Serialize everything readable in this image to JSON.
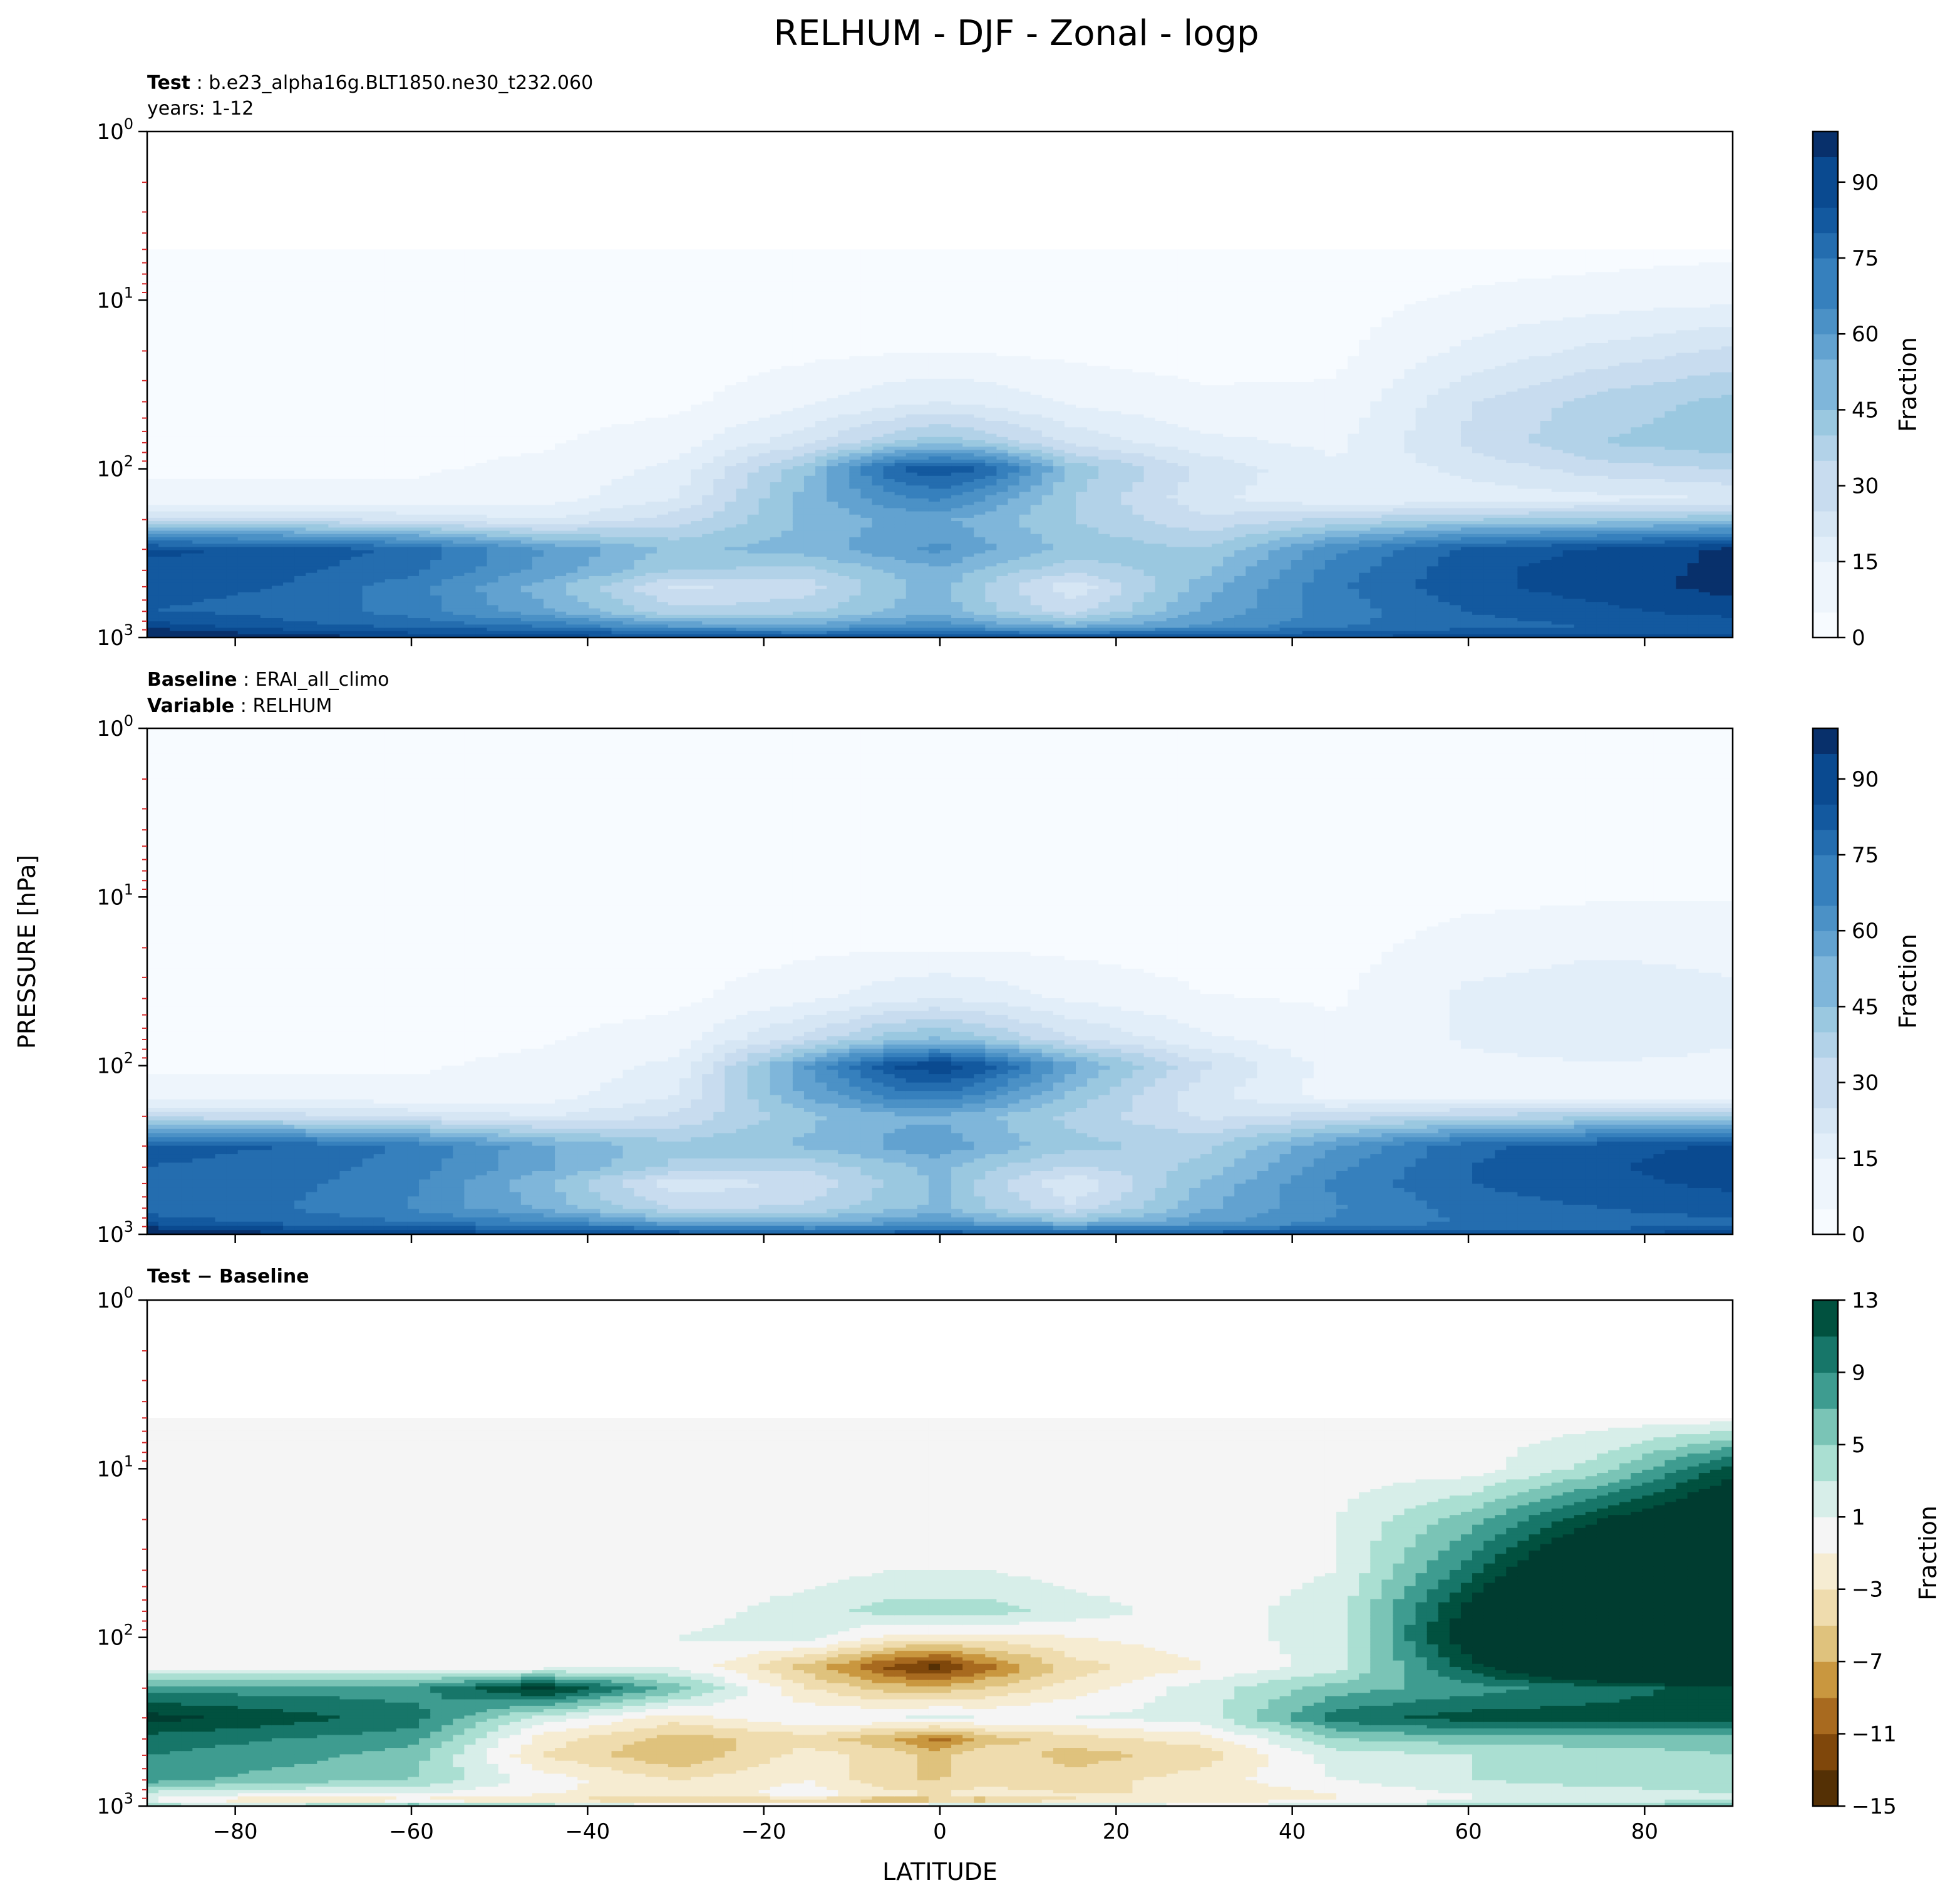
{
  "title": "RELHUM - DJF - Zonal - logp",
  "shared_xlabel": "LATITUDE",
  "shared_ylabel": "PRESSURE [hPa]",
  "panels": [
    {
      "header": [
        {
          "bold": "Test",
          "sep": " : ",
          "text": "b.e23_alpha16g.BLT1850.ne30_t232.060"
        },
        {
          "bold": "",
          "sep": "",
          "text": "years: 1-12"
        }
      ],
      "colorbar_label": "Fraction",
      "colorbar_ticks": [
        "0",
        "15",
        "30",
        "45",
        "60",
        "75",
        "90"
      ]
    },
    {
      "header": [
        {
          "bold": "Baseline",
          "sep": " : ",
          "text": "ERAI_all_climo"
        },
        {
          "bold": "Variable",
          "sep": " : ",
          "text": "RELHUM"
        }
      ],
      "colorbar_label": "Fraction",
      "colorbar_ticks": [
        "0",
        "15",
        "30",
        "45",
        "60",
        "75",
        "90"
      ]
    },
    {
      "header": [
        {
          "bold": "Test − Baseline",
          "sep": "",
          "text": ""
        }
      ],
      "colorbar_label": "Fraction",
      "colorbar_ticks": [
        "13",
        "9",
        "5",
        "1",
        "−3",
        "−7",
        "−11",
        "−15"
      ]
    }
  ],
  "colors": {
    "blues": [
      "#f7fbff",
      "#eef5fc",
      "#e2eef9",
      "#d6e6f4",
      "#c8dcef",
      "#b2d2e8",
      "#9ac8e0",
      "#7fb6da",
      "#62a2d0",
      "#4b91c6",
      "#3680bd",
      "#246daf",
      "#13599f",
      "#0a4a90",
      "#08306b"
    ],
    "brbg": [
      "#543005",
      "#7f470b",
      "#a86a1f",
      "#c9973f",
      "#dfc27d",
      "#efdcae",
      "#f6ecd2",
      "#f5f5f5",
      "#d7eee9",
      "#aadfd2",
      "#7ac4b6",
      "#3e9c90",
      "#177669",
      "#01513f",
      "#003c30"
    ],
    "stratosphere_fill": "#f3f4f2",
    "pressure_tick_marks": "#d62728"
  },
  "chart_data": [
    {
      "type": "heatmap",
      "panel": "Test",
      "x_axis": {
        "label": "LATITUDE",
        "range": [
          -90,
          90
        ],
        "ticks": [
          -80,
          -60,
          -40,
          -20,
          0,
          20,
          40,
          60,
          80
        ]
      },
      "y_axis": {
        "scale": "log",
        "inverted": true,
        "range": [
          1,
          1000
        ],
        "tick_labels": [
          "10^0",
          "10^1",
          "10^2",
          "10^3"
        ]
      },
      "colorbar": {
        "label": "Fraction",
        "range": [
          0,
          100
        ],
        "ticks": [
          0,
          15,
          30,
          45,
          60,
          75,
          90
        ]
      },
      "data_top_hPa": 5,
      "value_grid": {
        "latitudes": [
          -90,
          -75,
          -60,
          -45,
          -30,
          -15,
          -5,
          0,
          5,
          15,
          30,
          45,
          60,
          75,
          90
        ],
        "pressures_hPa": [
          5,
          10,
          20,
          40,
          70,
          100,
          150,
          200,
          300,
          400,
          500,
          700,
          850,
          925,
          1000
        ],
        "values": [
          [
            2,
            2,
            2,
            2,
            2,
            2,
            2,
            2,
            2,
            2,
            2,
            2,
            3,
            4,
            5
          ],
          [
            3,
            3,
            3,
            3,
            3,
            3,
            3,
            3,
            3,
            3,
            3,
            4,
            8,
            10,
            12
          ],
          [
            3,
            3,
            3,
            3,
            3,
            5,
            6,
            6,
            6,
            5,
            4,
            5,
            15,
            22,
            28
          ],
          [
            4,
            4,
            4,
            4,
            5,
            12,
            18,
            20,
            18,
            12,
            8,
            8,
            26,
            36,
            42
          ],
          [
            5,
            5,
            5,
            6,
            10,
            25,
            40,
            45,
            40,
            25,
            15,
            12,
            28,
            40,
            45
          ],
          [
            6,
            6,
            6,
            8,
            15,
            45,
            80,
            85,
            80,
            45,
            25,
            14,
            22,
            30,
            34
          ],
          [
            8,
            8,
            8,
            10,
            20,
            50,
            65,
            68,
            60,
            40,
            22,
            14,
            16,
            18,
            20
          ],
          [
            30,
            30,
            25,
            20,
            30,
            48,
            55,
            55,
            50,
            40,
            28,
            35,
            40,
            42,
            45
          ],
          [
            88,
            86,
            78,
            60,
            45,
            50,
            58,
            62,
            55,
            45,
            40,
            65,
            82,
            88,
            95
          ],
          [
            85,
            82,
            75,
            58,
            40,
            38,
            48,
            52,
            45,
            35,
            45,
            70,
            85,
            90,
            95
          ],
          [
            82,
            80,
            70,
            50,
            25,
            30,
            45,
            50,
            40,
            22,
            50,
            72,
            85,
            90,
            96
          ],
          [
            80,
            78,
            70,
            55,
            35,
            38,
            48,
            50,
            42,
            30,
            55,
            70,
            80,
            85,
            90
          ],
          [
            90,
            82,
            78,
            72,
            58,
            55,
            62,
            65,
            58,
            50,
            60,
            72,
            78,
            80,
            82
          ],
          [
            98,
            90,
            85,
            82,
            75,
            70,
            75,
            78,
            72,
            70,
            75,
            80,
            82,
            84,
            85
          ],
          [
            100,
            96,
            95,
            90,
            88,
            85,
            88,
            88,
            86,
            85,
            86,
            88,
            90,
            92,
            92
          ]
        ]
      }
    },
    {
      "type": "heatmap",
      "panel": "Baseline",
      "x_axis": {
        "label": "LATITUDE",
        "range": [
          -90,
          90
        ],
        "ticks": [
          -80,
          -60,
          -40,
          -20,
          0,
          20,
          40,
          60,
          80
        ]
      },
      "y_axis": {
        "scale": "log",
        "inverted": true,
        "range": [
          1,
          1000
        ],
        "tick_labels": [
          "10^0",
          "10^1",
          "10^2",
          "10^3"
        ]
      },
      "colorbar": {
        "label": "Fraction",
        "range": [
          0,
          100
        ],
        "ticks": [
          0,
          15,
          30,
          45,
          60,
          75,
          90
        ]
      },
      "data_top_hPa": 1,
      "value_grid": {
        "latitudes": [
          -90,
          -75,
          -60,
          -45,
          -30,
          -15,
          -5,
          0,
          5,
          15,
          30,
          45,
          60,
          75,
          90
        ],
        "pressures_hPa": [
          1,
          5,
          10,
          20,
          40,
          70,
          100,
          150,
          200,
          300,
          400,
          500,
          700,
          850,
          925,
          1000
        ],
        "values": [
          [
            2,
            2,
            2,
            2,
            2,
            2,
            2,
            2,
            2,
            2,
            2,
            2,
            2,
            2,
            2
          ],
          [
            3,
            3,
            3,
            3,
            3,
            3,
            3,
            3,
            3,
            3,
            3,
            3,
            3,
            3,
            3
          ],
          [
            3,
            3,
            3,
            3,
            3,
            3,
            3,
            3,
            3,
            3,
            3,
            3,
            5,
            6,
            6
          ],
          [
            3,
            3,
            3,
            3,
            3,
            5,
            6,
            6,
            6,
            5,
            4,
            4,
            10,
            12,
            12
          ],
          [
            4,
            4,
            4,
            4,
            5,
            12,
            18,
            20,
            18,
            12,
            7,
            6,
            15,
            18,
            14
          ],
          [
            5,
            5,
            5,
            6,
            10,
            30,
            45,
            48,
            42,
            28,
            15,
            8,
            14,
            16,
            14
          ],
          [
            6,
            6,
            6,
            8,
            15,
            60,
            88,
            92,
            85,
            55,
            28,
            10,
            12,
            13,
            12
          ],
          [
            8,
            8,
            8,
            10,
            20,
            55,
            70,
            72,
            65,
            45,
            22,
            10,
            10,
            10,
            10
          ],
          [
            30,
            30,
            25,
            20,
            28,
            45,
            52,
            52,
            48,
            38,
            25,
            30,
            35,
            38,
            40
          ],
          [
            82,
            80,
            72,
            55,
            42,
            48,
            55,
            58,
            52,
            42,
            38,
            60,
            78,
            84,
            88
          ],
          [
            80,
            78,
            70,
            55,
            38,
            35,
            45,
            50,
            42,
            32,
            42,
            65,
            80,
            86,
            90
          ],
          [
            78,
            76,
            68,
            48,
            22,
            28,
            42,
            48,
            38,
            20,
            48,
            68,
            80,
            85,
            88
          ],
          [
            76,
            74,
            66,
            52,
            32,
            35,
            45,
            48,
            40,
            28,
            52,
            66,
            76,
            80,
            84
          ],
          [
            85,
            78,
            74,
            68,
            55,
            52,
            58,
            62,
            55,
            48,
            58,
            68,
            74,
            76,
            78
          ],
          [
            95,
            88,
            82,
            80,
            72,
            68,
            72,
            75,
            70,
            68,
            72,
            76,
            78,
            80,
            82
          ],
          [
            100,
            95,
            92,
            88,
            85,
            82,
            85,
            86,
            84,
            82,
            84,
            86,
            88,
            90,
            90
          ]
        ]
      }
    },
    {
      "type": "heatmap",
      "panel": "Test - Baseline",
      "x_axis": {
        "label": "LATITUDE",
        "range": [
          -90,
          90
        ],
        "ticks": [
          -80,
          -60,
          -40,
          -20,
          0,
          20,
          40,
          60,
          80
        ]
      },
      "y_axis": {
        "scale": "log",
        "inverted": true,
        "range": [
          1,
          1000
        ],
        "tick_labels": [
          "10^0",
          "10^1",
          "10^2",
          "10^3"
        ]
      },
      "colorbar": {
        "label": "Fraction",
        "range": [
          -15,
          13
        ],
        "ticks": [
          13,
          9,
          5,
          1,
          -3,
          -7,
          -11,
          -15
        ]
      },
      "data_top_hPa": 5,
      "value_grid": {
        "latitudes": [
          -90,
          -75,
          -60,
          -45,
          -30,
          -15,
          -5,
          0,
          5,
          15,
          30,
          45,
          60,
          75,
          90
        ],
        "pressures_hPa": [
          5,
          10,
          20,
          40,
          70,
          100,
          150,
          200,
          300,
          400,
          500,
          700,
          850,
          925,
          1000
        ],
        "values": [
          [
            0,
            0,
            0,
            0,
            0,
            0,
            0,
            0,
            0,
            0,
            0,
            0,
            0,
            0,
            0
          ],
          [
            0,
            0,
            0,
            0,
            0,
            0,
            0,
            0,
            0,
            0,
            0,
            0,
            0,
            4,
            12
          ],
          [
            0,
            0,
            0,
            0,
            0,
            0,
            0,
            0,
            0,
            0,
            0,
            1,
            6,
            13,
            18
          ],
          [
            0,
            0,
            0,
            0,
            0,
            0,
            1,
            1,
            1,
            0,
            0,
            1,
            10,
            20,
            25
          ],
          [
            0,
            0,
            0,
            0,
            0,
            2,
            4,
            4,
            4,
            2,
            0,
            2,
            14,
            25,
            30
          ],
          [
            0,
            0,
            0,
            0,
            1,
            2,
            -2,
            -2,
            -2,
            -1,
            0,
            2,
            15,
            24,
            30
          ],
          [
            0,
            0,
            0,
            0,
            1,
            -6,
            -12,
            -14,
            -10,
            -4,
            -1,
            2,
            12,
            20,
            26
          ],
          [
            8,
            8,
            8,
            14,
            6,
            -3,
            -6,
            -6,
            -5,
            -2,
            2,
            6,
            8,
            10,
            12
          ],
          [
            14,
            12,
            10,
            2,
            -2,
            1,
            1,
            2,
            1,
            1,
            2,
            10,
            12,
            12,
            12
          ],
          [
            10,
            9,
            8,
            -2,
            -6,
            -4,
            -7,
            -10,
            -6,
            -4,
            -2,
            5,
            6,
            6,
            6
          ],
          [
            9,
            8,
            6,
            -3,
            -7,
            -2,
            -4,
            -6,
            -3,
            -6,
            -4,
            2,
            3,
            4,
            5
          ],
          [
            8,
            6,
            5,
            0,
            -3,
            -1,
            -5,
            -5,
            -4,
            -4,
            -2,
            1,
            3,
            4,
            4
          ],
          [
            2,
            1,
            1,
            -1,
            -2,
            0,
            -2,
            -3,
            -2,
            -3,
            -3,
            -1,
            1,
            2,
            3
          ],
          [
            1,
            -4,
            -2,
            -3,
            -6,
            -4,
            -8,
            -6,
            -7,
            -3,
            -2,
            -1,
            1,
            2,
            3
          ],
          [
            4,
            5,
            8,
            6,
            2,
            3,
            3,
            4,
            5,
            3,
            2,
            2,
            5,
            6,
            6
          ]
        ]
      }
    }
  ]
}
